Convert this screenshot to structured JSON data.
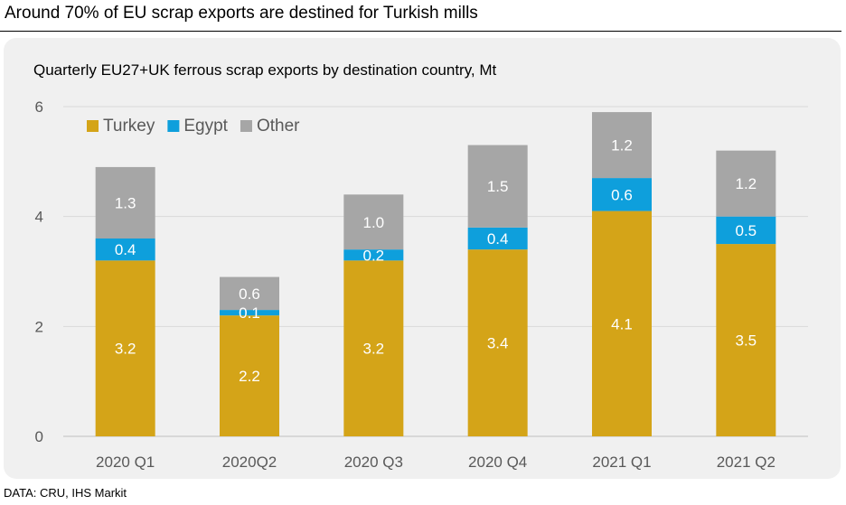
{
  "headline": "Around 70% of EU scrap exports are destined for Turkish mills",
  "source": "DATA: CRU, IHS Markit",
  "chart_data": {
    "type": "bar",
    "stacked": true,
    "title": "Quarterly EU27+UK ferrous scrap exports by destination country, Mt",
    "xlabel": "",
    "ylabel": "",
    "ylim": [
      0,
      6
    ],
    "yticks": [
      0,
      2,
      4,
      6
    ],
    "grid": true,
    "legend_position": "top-left",
    "categories": [
      "2020 Q1",
      "2020Q2",
      "2020 Q3",
      "2020 Q4",
      "2021 Q1",
      "2021 Q2"
    ],
    "series": [
      {
        "name": "Turkey",
        "color": "#d4a418",
        "values": [
          3.2,
          2.2,
          3.2,
          3.4,
          4.1,
          3.5
        ],
        "labels": [
          "3.2",
          "2.2",
          "3.2",
          "3.4",
          "4.1",
          "3.5"
        ]
      },
      {
        "name": "Egypt",
        "color": "#0e9fdc",
        "values": [
          0.4,
          0.1,
          0.2,
          0.4,
          0.6,
          0.5
        ],
        "labels": [
          "0.4",
          "0.1",
          "0.2",
          "0.4",
          "0.6",
          "0.5"
        ]
      },
      {
        "name": "Other",
        "color": "#a6a6a6",
        "values": [
          1.3,
          0.6,
          1.0,
          1.5,
          1.2,
          1.2
        ],
        "labels": [
          "1.3",
          "0.6",
          "1.0",
          "1.5",
          "1.2",
          "1.2"
        ]
      }
    ]
  }
}
